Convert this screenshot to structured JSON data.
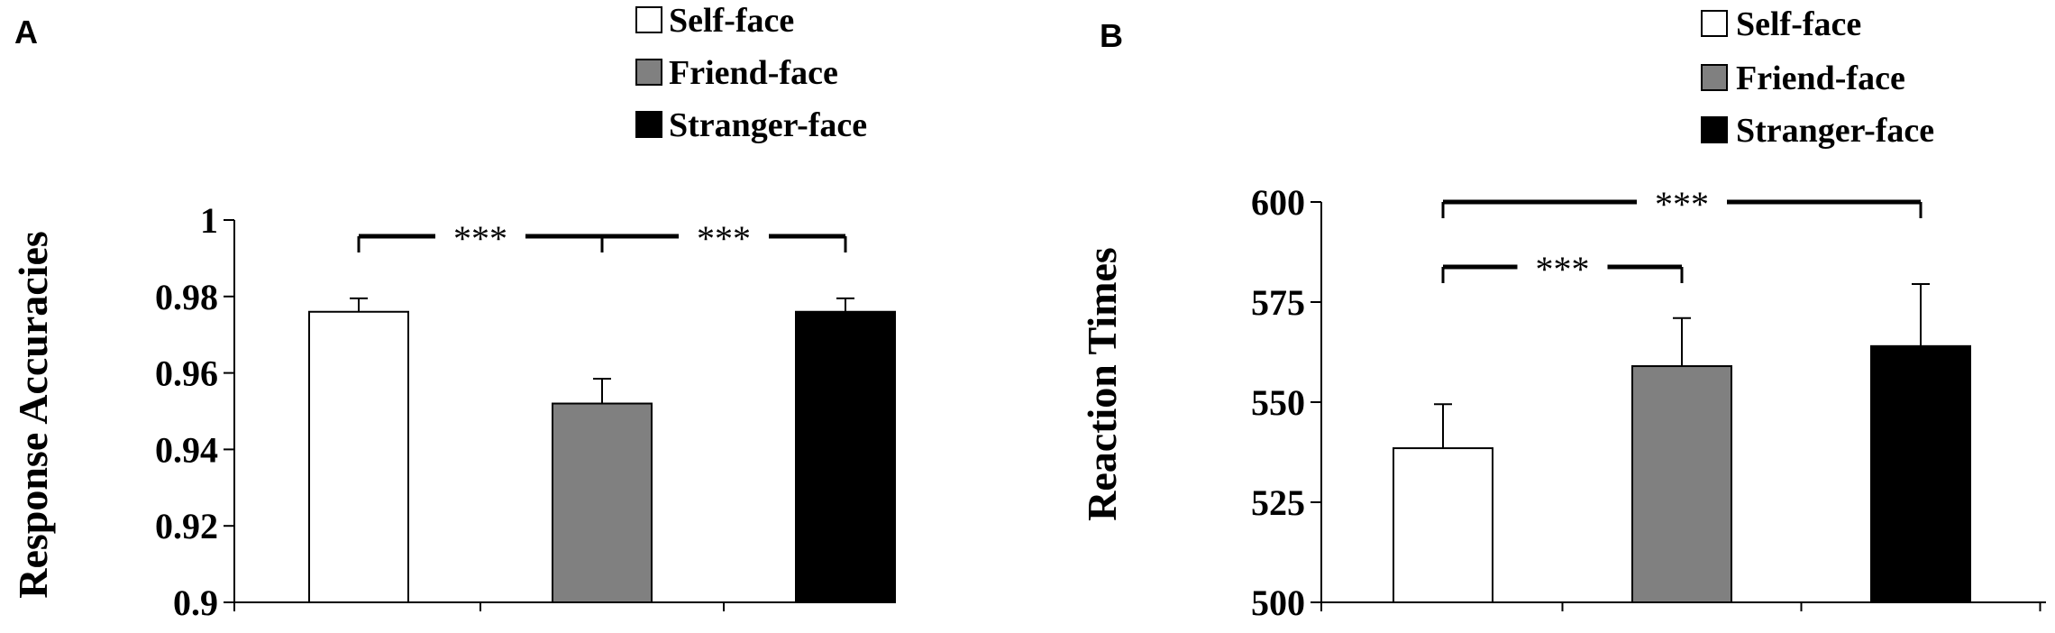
{
  "figure": {
    "panel_letters": [
      "A",
      "B"
    ]
  },
  "legend": {
    "entries": [
      {
        "label": "Self-face",
        "color": "#ffffff"
      },
      {
        "label": "Friend-face",
        "color": "#808080"
      },
      {
        "label": "Stranger-face",
        "color": "#000000"
      }
    ]
  },
  "chart_data": [
    {
      "type": "bar",
      "panel": "A",
      "title": "",
      "xlabel": "",
      "ylabel": "Response Accuracies",
      "categories": [
        "Self-face",
        "Friend-face",
        "Stranger-face"
      ],
      "series": [
        {
          "values": [
            0.976,
            0.952,
            0.976
          ],
          "errors": [
            0.0035,
            0.0065,
            0.0035
          ]
        }
      ],
      "colors": [
        "#ffffff",
        "#808080",
        "#000000"
      ],
      "ylim": [
        0.9,
        1.0
      ],
      "yticks": [
        0.9,
        0.92,
        0.94,
        0.96,
        0.98,
        1
      ],
      "ytick_labels": [
        "0.9",
        "0.92",
        "0.94",
        "0.96",
        "0.98",
        "1"
      ],
      "grid": false,
      "legend_position": "top",
      "significance": [
        {
          "from": 0,
          "to": 1,
          "label": "***",
          "level": 1
        },
        {
          "from": 1,
          "to": 2,
          "label": "***",
          "level": 1
        }
      ]
    },
    {
      "type": "bar",
      "panel": "B",
      "title": "",
      "xlabel": "",
      "ylabel": "Reaction Times",
      "categories": [
        "Self-face",
        "Friend-face",
        "Stranger-face"
      ],
      "series": [
        {
          "values": [
            538.5,
            559,
            564
          ],
          "errors": [
            11,
            12,
            15.5
          ]
        }
      ],
      "colors": [
        "#ffffff",
        "#808080",
        "#000000"
      ],
      "ylim": [
        500,
        600
      ],
      "yticks": [
        500,
        525,
        550,
        575,
        600
      ],
      "ytick_labels": [
        "500",
        "525",
        "550",
        "575",
        "600"
      ],
      "grid": false,
      "legend_position": "top",
      "significance": [
        {
          "from": 0,
          "to": 1,
          "label": "***",
          "level": 1
        },
        {
          "from": 0,
          "to": 2,
          "label": "***",
          "level": 2
        }
      ]
    }
  ]
}
